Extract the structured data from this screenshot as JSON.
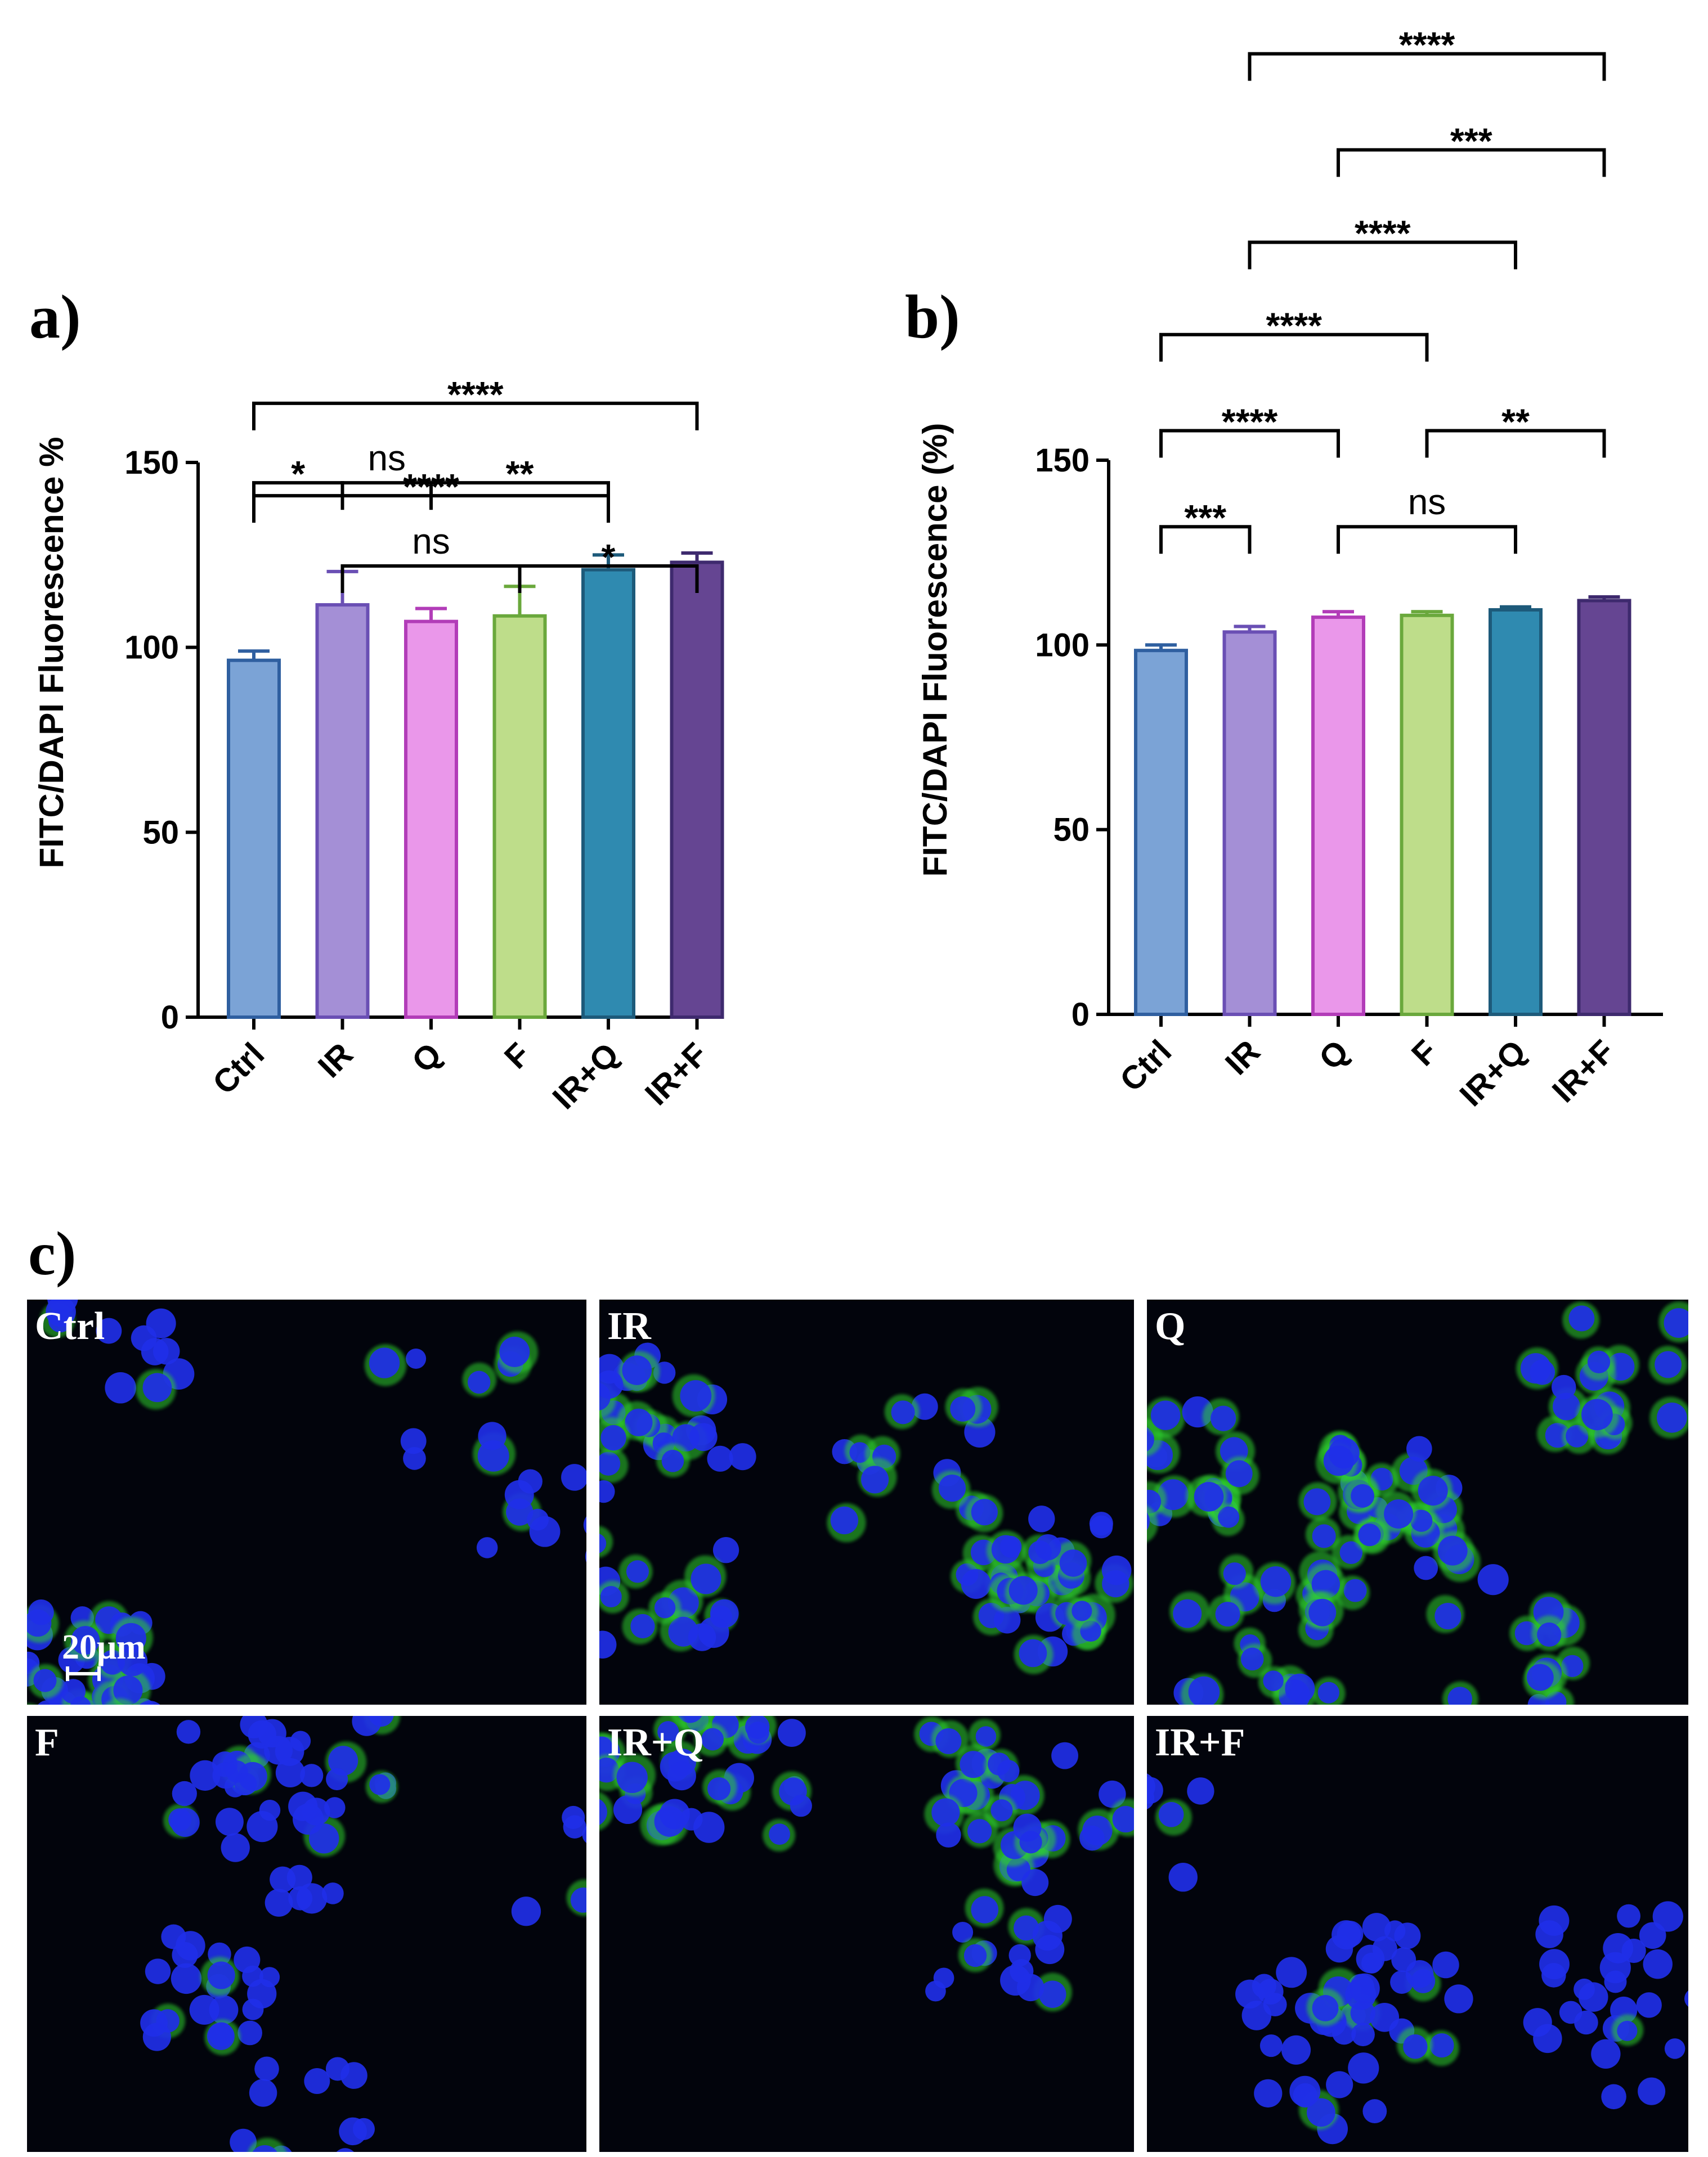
{
  "chart_data": [
    {
      "type": "bar",
      "panel": "a)",
      "categories": [
        "Ctrl",
        "IR",
        "Q",
        "F",
        "IR+Q",
        "IR+F"
      ],
      "values": [
        96.5,
        111.5,
        107,
        108.5,
        121,
        123
      ],
      "errors": [
        2.5,
        9,
        3.5,
        8,
        4,
        2.5
      ],
      "ylabel": "FITC/DAPI Fluorescence %",
      "ylim": [
        0,
        150
      ],
      "yticks": [
        0,
        50,
        100,
        150
      ],
      "colors": [
        "#7ba3d6",
        "#a48fd6",
        "#ea97ea",
        "#bedd8a",
        "#2f8ab0",
        "#654592"
      ],
      "edge_colors": [
        "#2f5fa0",
        "#6a4fb4",
        "#b23cb8",
        "#6aa83c",
        "#1d5a7a",
        "#3e2a6e"
      ],
      "significance": [
        {
          "from": 0,
          "to": 5,
          "label": "****",
          "y": 166
        },
        {
          "from": 0,
          "to": 4,
          "label": "****",
          "y": 141
        },
        {
          "from": 1,
          "to": 3,
          "label": "ns",
          "y": 122
        },
        {
          "from": 3,
          "to": 5,
          "label": "*",
          "y": 122
        },
        {
          "from": 0,
          "to": 1,
          "label": "*",
          "y": 144.5
        },
        {
          "from": 1,
          "to": 2,
          "label": "ns",
          "y": 144.5
        },
        {
          "from": 2,
          "to": 4,
          "label": "**",
          "y": 144.5
        }
      ]
    },
    {
      "type": "bar",
      "panel": "b)",
      "categories": [
        "Ctrl",
        "IR",
        "Q",
        "F",
        "IR+Q",
        "IR+F"
      ],
      "values": [
        98.5,
        103.5,
        107.5,
        108,
        109.5,
        112
      ],
      "errors": [
        1.5,
        1.5,
        1.5,
        1,
        0.8,
        1
      ],
      "ylabel": "FITC/DAPI Fluorescence (%)",
      "ylim": [
        0,
        150
      ],
      "yticks": [
        0,
        50,
        100,
        150
      ],
      "colors": [
        "#7ba3d6",
        "#a48fd6",
        "#ea97ea",
        "#bedd8a",
        "#2f8ab0",
        "#654592"
      ],
      "edge_colors": [
        "#2f5fa0",
        "#6a4fb4",
        "#b23cb8",
        "#6aa83c",
        "#1d5a7a",
        "#3e2a6e"
      ],
      "significance": [
        {
          "from": 1,
          "to": 5,
          "label": "****",
          "y": 260
        },
        {
          "from": 2,
          "to": 5,
          "label": "***",
          "y": 234
        },
        {
          "from": 1,
          "to": 4,
          "label": "****",
          "y": 209
        },
        {
          "from": 0,
          "to": 3,
          "label": "****",
          "y": 184
        },
        {
          "from": 0,
          "to": 2,
          "label": "****",
          "y": 158
        },
        {
          "from": 3,
          "to": 5,
          "label": "**",
          "y": 158
        },
        {
          "from": 0,
          "to": 1,
          "label": "***",
          "y": 132
        },
        {
          "from": 2,
          "to": 4,
          "label": "ns",
          "y": 132
        }
      ]
    }
  ],
  "micrographs": {
    "panel": "c)",
    "scale_bar": "20μm",
    "panels": [
      {
        "label": "Ctrl",
        "green": 0.25
      },
      {
        "label": "IR",
        "green": 0.6
      },
      {
        "label": "Q",
        "green": 0.85
      },
      {
        "label": "F",
        "green": 0.2
      },
      {
        "label": "IR+Q",
        "green": 0.45
      },
      {
        "label": "IR+F",
        "green": 0.12
      }
    ]
  }
}
